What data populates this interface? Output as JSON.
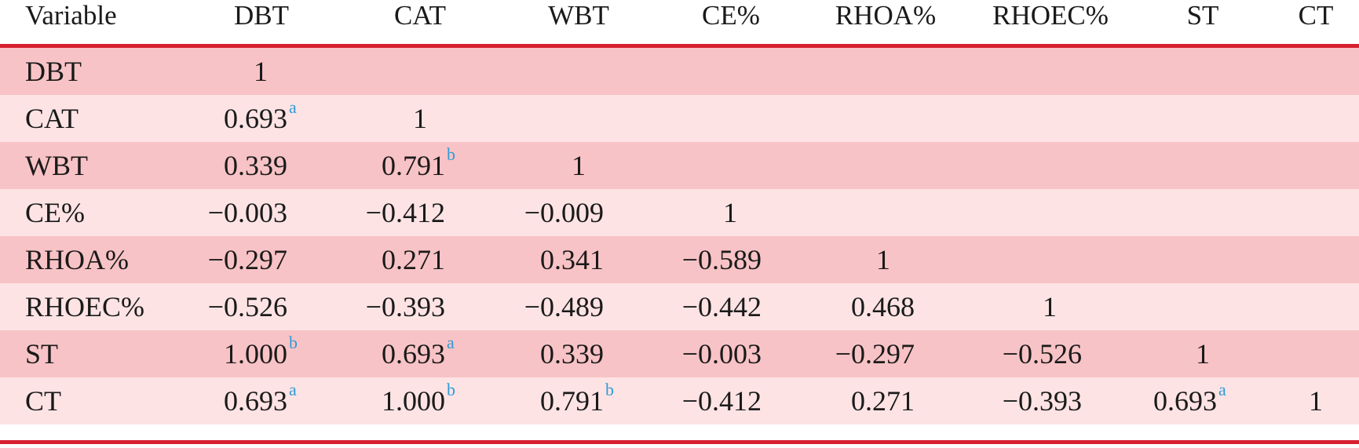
{
  "table": {
    "headers": [
      "Variable",
      "DBT",
      "CAT",
      "WBT",
      "CE%",
      "RHOA%",
      "RHOEC%",
      "ST",
      "CT"
    ],
    "rows": [
      {
        "label": "DBT",
        "cells": [
          {
            "v": "1",
            "s": ""
          }
        ]
      },
      {
        "label": "CAT",
        "cells": [
          {
            "v": "0.693",
            "s": "a"
          },
          {
            "v": "1",
            "s": ""
          }
        ]
      },
      {
        "label": "WBT",
        "cells": [
          {
            "v": "0.339",
            "s": ""
          },
          {
            "v": "0.791",
            "s": "b"
          },
          {
            "v": "1",
            "s": ""
          }
        ]
      },
      {
        "label": "CE%",
        "cells": [
          {
            "v": "−0.003",
            "s": ""
          },
          {
            "v": "−0.412",
            "s": ""
          },
          {
            "v": "−0.009",
            "s": ""
          },
          {
            "v": "1",
            "s": ""
          }
        ]
      },
      {
        "label": "RHOA%",
        "cells": [
          {
            "v": "−0.297",
            "s": ""
          },
          {
            "v": "0.271",
            "s": ""
          },
          {
            "v": "0.341",
            "s": ""
          },
          {
            "v": "−0.589",
            "s": ""
          },
          {
            "v": "1",
            "s": ""
          }
        ]
      },
      {
        "label": "RHOEC%",
        "cells": [
          {
            "v": "−0.526",
            "s": ""
          },
          {
            "v": "−0.393",
            "s": ""
          },
          {
            "v": "−0.489",
            "s": ""
          },
          {
            "v": "−0.442",
            "s": ""
          },
          {
            "v": "0.468",
            "s": ""
          },
          {
            "v": "1",
            "s": ""
          }
        ]
      },
      {
        "label": "ST",
        "cells": [
          {
            "v": "1.000",
            "s": "b"
          },
          {
            "v": "0.693",
            "s": "a"
          },
          {
            "v": "0.339",
            "s": ""
          },
          {
            "v": "−0.003",
            "s": ""
          },
          {
            "v": "−0.297",
            "s": ""
          },
          {
            "v": "−0.526",
            "s": ""
          },
          {
            "v": "1",
            "s": ""
          }
        ]
      },
      {
        "label": "CT",
        "cells": [
          {
            "v": "0.693",
            "s": "a"
          },
          {
            "v": "1.000",
            "s": "b"
          },
          {
            "v": "0.791",
            "s": "b"
          },
          {
            "v": "−0.412",
            "s": ""
          },
          {
            "v": "0.271",
            "s": ""
          },
          {
            "v": "−0.393",
            "s": ""
          },
          {
            "v": "0.693",
            "s": "a"
          },
          {
            "v": "1",
            "s": ""
          }
        ]
      }
    ]
  },
  "colors": {
    "rule": "#d7202f",
    "row_dark": "#f8c3c6",
    "row_light": "#fde3e4",
    "superscript": "#2e9bd6"
  }
}
